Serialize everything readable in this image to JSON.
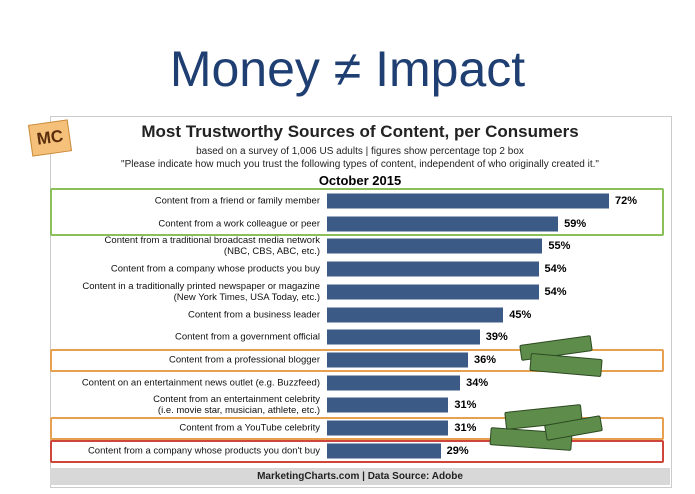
{
  "slide_title": "Money ≠ Impact",
  "logo": "MC",
  "chart_data": {
    "type": "bar",
    "orientation": "horizontal",
    "title": "Most Trustworthy Sources of Content, per Consumers",
    "subtitle": "based on a survey of 1,006 US adults | figures show percentage top 2 box",
    "question": "\"Please indicate how much you trust the following types of content, independent of who originally created it.\"",
    "period": "October 2015",
    "categories": [
      "Content from a friend or family member",
      "Content from a work colleague or peer",
      "Content from a traditional broadcast media network\n(NBC, CBS, ABC, etc.)",
      "Content from a company whose products you buy",
      "Content in a traditionally printed newspaper or magazine\n(New York Times, USA Today, etc.)",
      "Content from a business leader",
      "Content from a government official",
      "Content from a professional blogger",
      "Content on an entertainment news outlet (e.g. Buzzfeed)",
      "Content from an entertainment celebrity\n(i.e. movie star, musician, athlete, etc.)",
      "Content from a YouTube celebrity",
      "Content from a company whose products you don't buy"
    ],
    "values": [
      72,
      59,
      55,
      54,
      54,
      45,
      39,
      36,
      34,
      31,
      31,
      29
    ],
    "value_labels": [
      "72%",
      "59%",
      "55%",
      "54%",
      "54%",
      "45%",
      "39%",
      "36%",
      "34%",
      "31%",
      "31%",
      "29%"
    ],
    "color": "#3b5a86",
    "source": "MarketingCharts.com | Data Source: Adobe"
  }
}
